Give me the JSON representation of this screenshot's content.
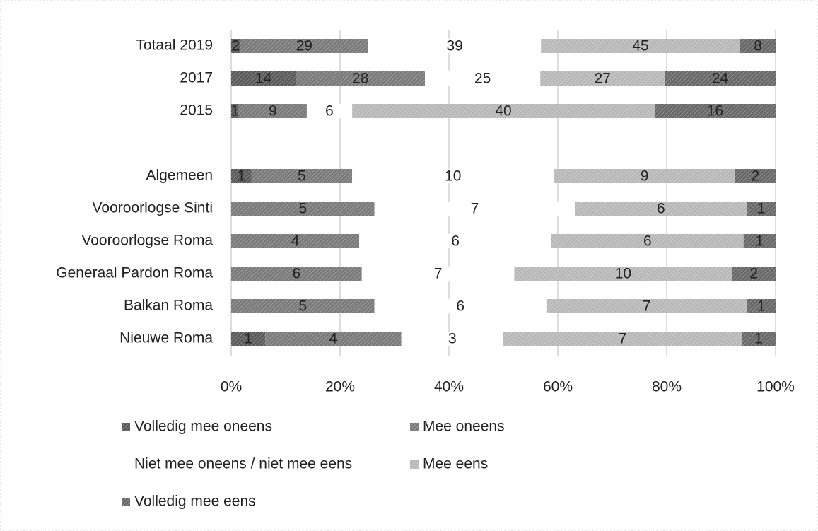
{
  "chart_data": {
    "type": "bar",
    "orientation": "horizontal",
    "stacking": "percent",
    "categories": [
      "Totaal 2019",
      "2017",
      "2015",
      null,
      "Algemeen",
      "Vooroorlogse Sinti",
      "Vooroorlogse Roma",
      "Generaal Pardon Roma",
      "Balkan Roma",
      "Nieuwe Roma"
    ],
    "series": [
      {
        "name": "Volledig mee oneens",
        "color": "#5a5a5a",
        "values": [
          2,
          14,
          1,
          null,
          1,
          0,
          0,
          0,
          0,
          1
        ]
      },
      {
        "name": "Mee oneens",
        "color": "#7a7a7a",
        "values": [
          29,
          28,
          9,
          null,
          5,
          5,
          4,
          6,
          5,
          4
        ]
      },
      {
        "name": "Niet mee oneens / niet mee eens",
        "color": "#ffffff",
        "values": [
          39,
          25,
          6,
          null,
          10,
          7,
          6,
          7,
          6,
          3
        ]
      },
      {
        "name": "Mee eens",
        "color": "#b8b8b8",
        "values": [
          45,
          27,
          40,
          null,
          9,
          6,
          6,
          10,
          7,
          7
        ]
      },
      {
        "name": "Volledig mee eens",
        "color": "#686868",
        "values": [
          8,
          24,
          16,
          null,
          2,
          1,
          1,
          2,
          1,
          1
        ]
      }
    ],
    "xlim": [
      0,
      100
    ],
    "xticks": [
      {
        "value": 0,
        "label": "0%"
      },
      {
        "value": 20,
        "label": "20%"
      },
      {
        "value": 40,
        "label": "40%"
      },
      {
        "value": 60,
        "label": "60%"
      },
      {
        "value": 80,
        "label": "80%"
      },
      {
        "value": 100,
        "label": "100%"
      }
    ],
    "grid": true,
    "legend": "bottom"
  }
}
